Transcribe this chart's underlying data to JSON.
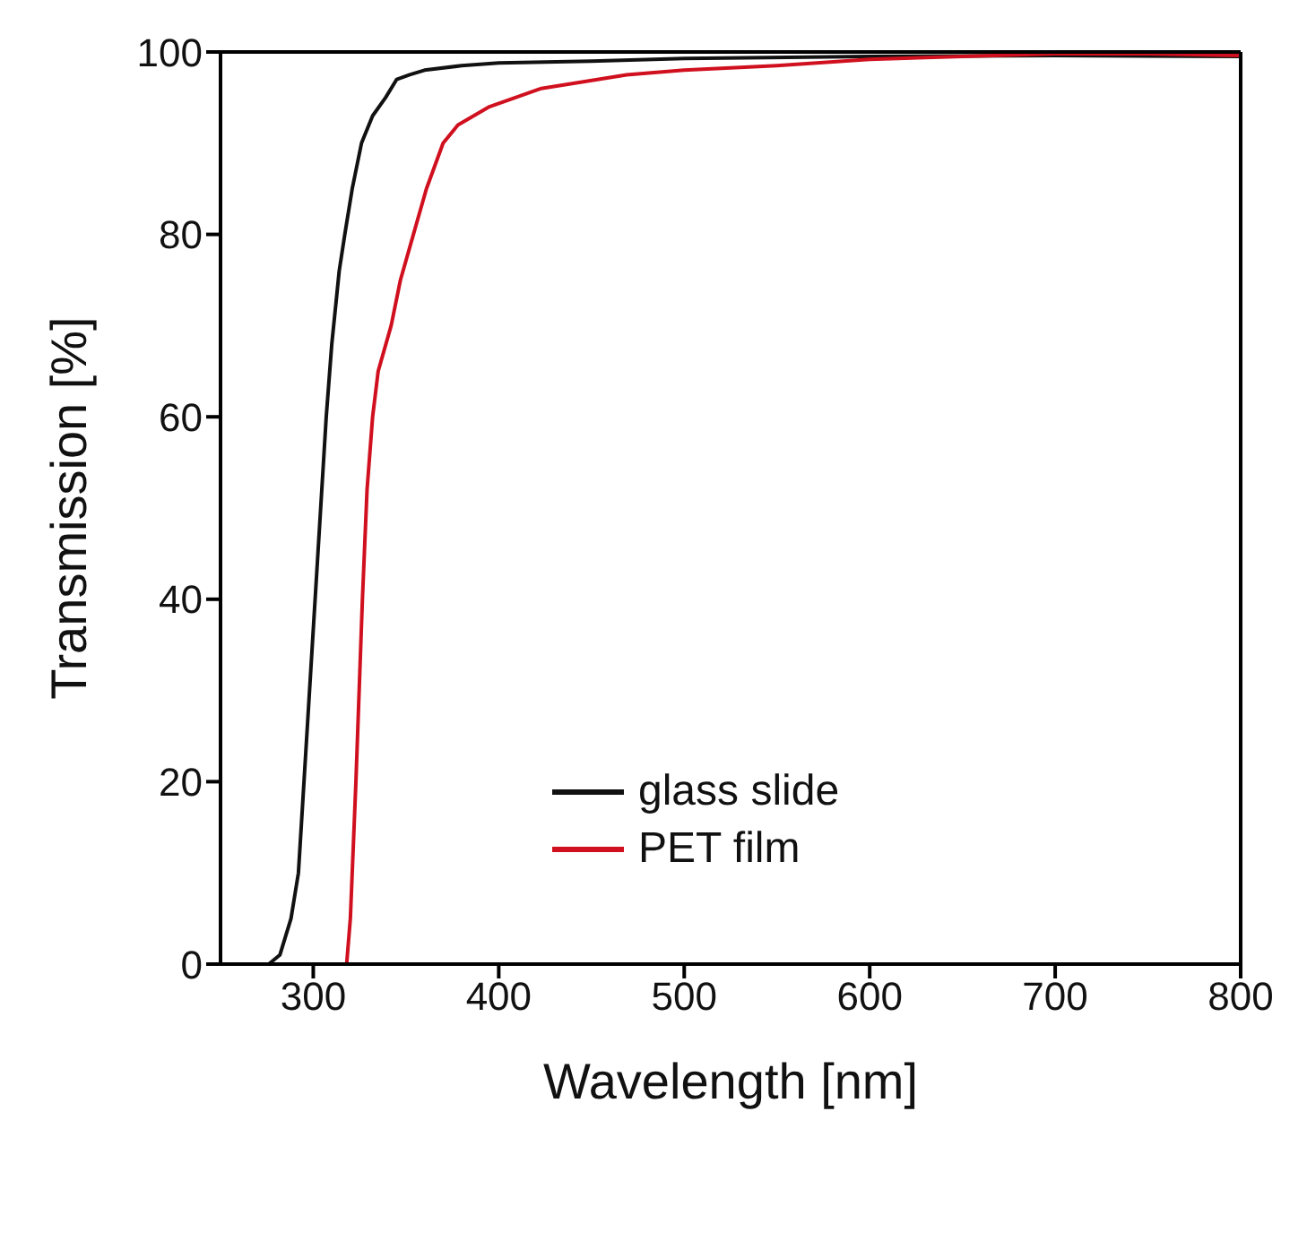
{
  "chart_data": {
    "type": "line",
    "xlabel": "Wavelength [nm]",
    "ylabel": "Transmission  [%]",
    "xlim": [
      250,
      800
    ],
    "ylim": [
      0,
      100
    ],
    "xticks": [
      300,
      400,
      500,
      600,
      700,
      800
    ],
    "yticks": [
      0,
      20,
      40,
      60,
      80,
      100
    ],
    "grid": false,
    "legend": "bottom",
    "series": [
      {
        "name": "glass slide",
        "color": "#111111",
        "x": [
          250,
          270,
          276,
          282,
          288,
          292,
          295,
          298,
          301,
          304,
          307,
          310,
          314,
          317,
          321,
          326,
          332,
          339,
          345,
          352,
          360,
          380,
          400,
          450,
          500,
          600,
          700,
          800
        ],
        "values": [
          0,
          0,
          0,
          1,
          5,
          10,
          20,
          30,
          40,
          50,
          60,
          68,
          76,
          80,
          85,
          90,
          93,
          95,
          97,
          97.5,
          98,
          98.5,
          98.8,
          99,
          99.3,
          99.5,
          99.6,
          99.5
        ]
      },
      {
        "name": "PET film",
        "color": "#d0101e",
        "x": [
          250,
          318,
          320,
          323,
          326.5,
          329,
          332,
          335,
          342,
          347,
          354,
          361,
          370,
          378,
          395,
          423,
          469,
          500,
          550,
          600,
          650,
          700,
          750,
          800
        ],
        "values": [
          0,
          0,
          5,
          20,
          40,
          52,
          60,
          65,
          70,
          75,
          80,
          85,
          90,
          92,
          94,
          96,
          97.5,
          98,
          98.5,
          99.2,
          99.5,
          99.8,
          99.8,
          99.6
        ]
      }
    ]
  }
}
